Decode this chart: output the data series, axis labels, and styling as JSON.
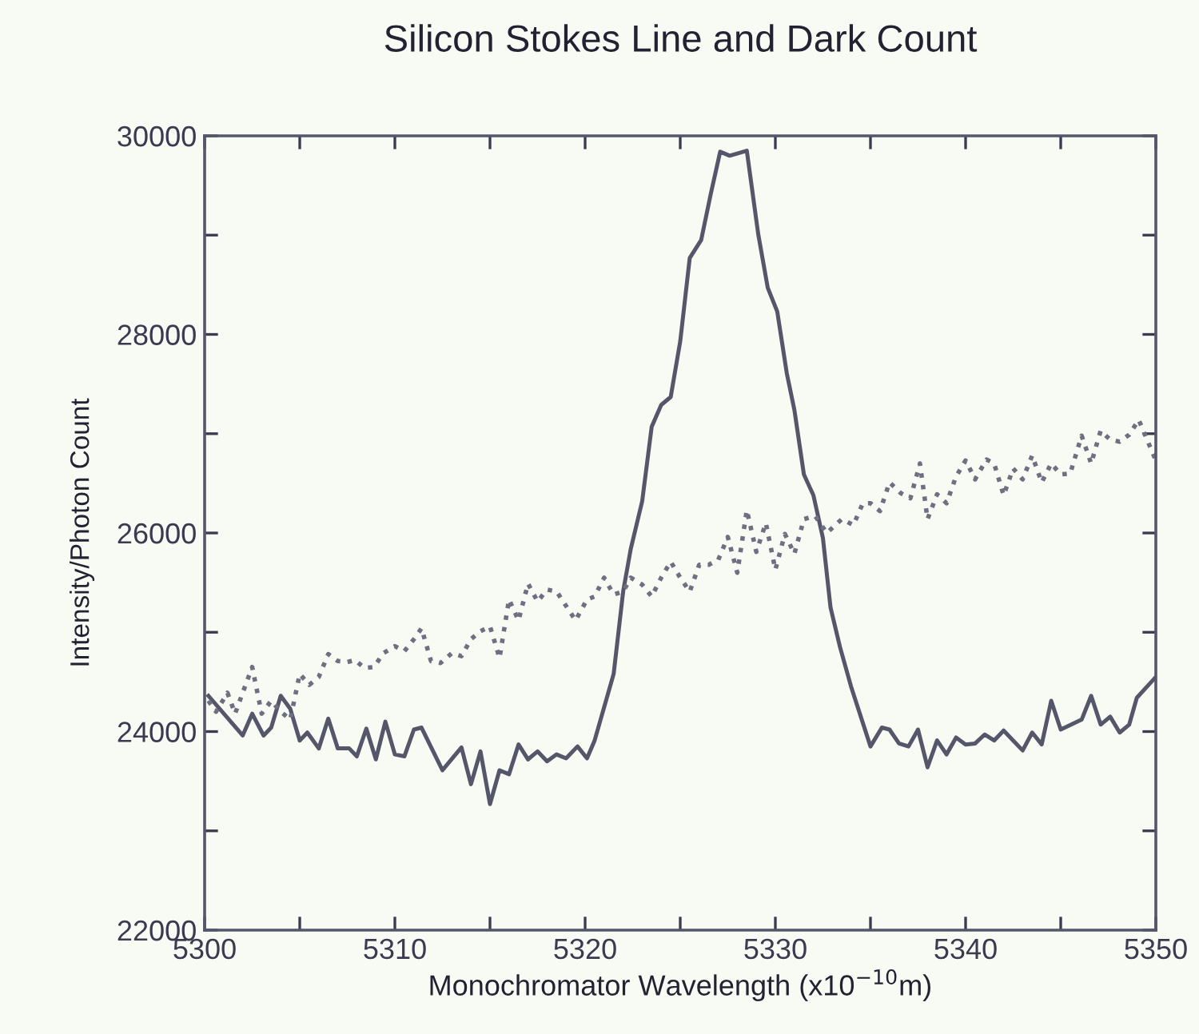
{
  "chart_data": {
    "type": "line",
    "title": "Silicon Stokes Line and Dark Count",
    "xlabel": "Monochromator Wavelength (x10$^{−10}$m)",
    "ylabel": "Intensity/Photon Count",
    "xlim": [
      5300,
      5350
    ],
    "ylim": [
      22000,
      30000
    ],
    "xticks": [
      5300,
      {
        "value": 5305,
        "label": null
      },
      5310,
      {
        "value": 5315,
        "label": null
      },
      5320,
      {
        "value": 5325,
        "label": null
      },
      5330,
      {
        "value": 5335,
        "label": null
      },
      5340,
      {
        "value": 5345,
        "label": null
      },
      5350
    ],
    "yticks": [
      22000,
      {
        "value": 23000,
        "label": null
      },
      24000,
      {
        "value": 25000,
        "label": null
      },
      26000,
      {
        "value": 27000,
        "label": null
      },
      28000,
      {
        "value": 29000,
        "label": null
      },
      30000
    ],
    "grid": false,
    "legend": false,
    "marker": "none",
    "series": [
      {
        "color": "#55566a",
        "line_style": "solid",
        "x": [
          5300.2,
          5302.0,
          5302.5,
          5303.1,
          5303.5,
          5304.0,
          5304.5,
          5305.0,
          5305.4,
          5306.0,
          5306.5,
          5307.0,
          5307.6,
          5308.0,
          5308.5,
          5309.0,
          5309.5,
          5310.0,
          5310.5,
          5311.0,
          5311.4,
          5312.5,
          5313.5,
          5314.0,
          5314.5,
          5315.0,
          5315.5,
          5316.0,
          5316.5,
          5317.0,
          5317.5,
          5318.0,
          5318.5,
          5319.0,
          5319.6,
          5320.1,
          5320.5,
          5321.5,
          5322.0,
          5322.4,
          5323.0,
          5323.5,
          5324.0,
          5324.5,
          5325.0,
          5325.5,
          5326.1,
          5326.6,
          5327.1,
          5327.6,
          5328.5,
          5329.1,
          5329.6,
          5330.1,
          5330.6,
          5331.0,
          5331.5,
          5332.0,
          5332.5,
          5332.9,
          5333.4,
          5334.0,
          5335.0,
          5335.6,
          5336.0,
          5336.5,
          5337.0,
          5337.5,
          5338.0,
          5338.5,
          5339.0,
          5339.5,
          5340.0,
          5340.5,
          5341.0,
          5341.5,
          5342.0,
          5342.5,
          5343.0,
          5343.5,
          5344.0,
          5344.5,
          5345.0,
          5346.1,
          5346.6,
          5347.1,
          5347.6,
          5348.1,
          5348.6,
          5349.0,
          5350.0
        ],
        "values": [
          24360,
          23960,
          24180,
          23960,
          24040,
          24360,
          24230,
          23910,
          23990,
          23830,
          24130,
          23830,
          23830,
          23750,
          24030,
          23720,
          24100,
          23770,
          23750,
          24020,
          24040,
          23610,
          23840,
          23470,
          23800,
          23270,
          23610,
          23570,
          23870,
          23720,
          23800,
          23700,
          23770,
          23730,
          23850,
          23730,
          23910,
          24580,
          25410,
          25840,
          26320,
          27070,
          27290,
          27370,
          27930,
          28770,
          28950,
          29410,
          29840,
          29800,
          29850,
          29010,
          28470,
          28230,
          27610,
          27240,
          26590,
          26380,
          25950,
          25250,
          24850,
          24440,
          23850,
          24040,
          24020,
          23880,
          23850,
          24020,
          23640,
          23910,
          23770,
          23940,
          23870,
          23880,
          23970,
          23910,
          24010,
          23910,
          23810,
          23990,
          23870,
          24310,
          24020,
          24120,
          24360,
          24070,
          24150,
          23990,
          24070,
          24340,
          24550
        ]
      },
      {
        "color": "#6e6f80",
        "line_style": "dotted",
        "x": [
          5300.2,
          5300.6,
          5301.2,
          5301.6,
          5302.0,
          5302.5,
          5303.0,
          5303.5,
          5304.0,
          5304.5,
          5305.0,
          5305.5,
          5306.0,
          5306.5,
          5307.0,
          5307.5,
          5307.9,
          5308.4,
          5308.9,
          5309.4,
          5310.0,
          5310.5,
          5311.0,
          5311.4,
          5311.9,
          5312.4,
          5313.0,
          5313.5,
          5314.0,
          5314.5,
          5315.0,
          5315.5,
          5316.0,
          5316.5,
          5317.0,
          5317.5,
          5318.0,
          5318.5,
          5319.5,
          5320.1,
          5320.5,
          5321.0,
          5321.5,
          5322.0,
          5322.4,
          5323.0,
          5323.5,
          5324.0,
          5324.5,
          5325.0,
          5325.5,
          5326.0,
          5326.5,
          5327.0,
          5327.5,
          5328.0,
          5328.5,
          5329.0,
          5329.5,
          5330.0,
          5330.5,
          5331.0,
          5331.5,
          5332.1,
          5332.7,
          5333.5,
          5334.1,
          5334.6,
          5335.0,
          5335.5,
          5336.0,
          5336.6,
          5337.1,
          5337.6,
          5338.0,
          5338.5,
          5339.0,
          5339.5,
          5340.0,
          5340.5,
          5341.1,
          5341.5,
          5342.0,
          5342.5,
          5343.0,
          5343.5,
          5344.0,
          5344.5,
          5345.0,
          5345.5,
          5346.1,
          5346.6,
          5347.1,
          5347.6,
          5348.1,
          5348.6,
          5349.1,
          5350.0
        ],
        "values": [
          24310,
          24200,
          24390,
          24180,
          24390,
          24650,
          24180,
          24310,
          24200,
          24120,
          24580,
          24470,
          24550,
          24780,
          24710,
          24700,
          24720,
          24640,
          24650,
          24790,
          24860,
          24810,
          24930,
          25040,
          24710,
          24690,
          24790,
          24760,
          24930,
          25010,
          25060,
          24740,
          25330,
          25120,
          25490,
          25310,
          25430,
          25410,
          25120,
          25330,
          25360,
          25550,
          25380,
          25410,
          25550,
          25480,
          25360,
          25550,
          25710,
          25550,
          25410,
          25680,
          25680,
          25730,
          25960,
          25600,
          26230,
          25810,
          26100,
          25630,
          25990,
          25790,
          26140,
          26170,
          26000,
          26140,
          26080,
          26300,
          26300,
          26220,
          26510,
          26400,
          26350,
          26700,
          26140,
          26390,
          26300,
          26570,
          26730,
          26540,
          26740,
          26700,
          26380,
          26650,
          26540,
          26780,
          26510,
          26700,
          26590,
          26600,
          26980,
          26700,
          27030,
          26940,
          26920,
          26990,
          27140,
          26730
        ]
      }
    ]
  }
}
